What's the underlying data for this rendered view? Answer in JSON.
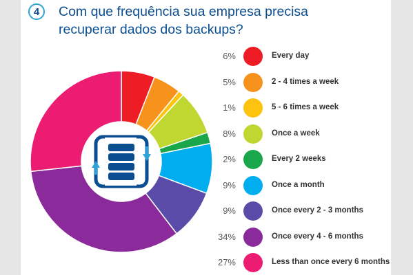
{
  "badge": "4",
  "title_lines": [
    "Com que frequência sua empresa precisa",
    "recuperar dados dos backups?"
  ],
  "chart_data": {
    "type": "pie",
    "title": "Com que frequência sua empresa precisa recuperar dados dos backups?",
    "categories": [
      "Every day",
      "2 - 4 times a week",
      "5 - 6 times a week",
      "Once a week",
      "Every 2 weeks",
      "Once a month",
      "Once every 2 - 3 months",
      "Once every 4 - 6 months",
      "Less than once every 6 months"
    ],
    "values": [
      6,
      5,
      1,
      8,
      2,
      9,
      9,
      34,
      27
    ],
    "value_labels": [
      "6%",
      "5%",
      "1%",
      "8%",
      "2%",
      "9%",
      "9%",
      "34%",
      "27%"
    ],
    "colors": [
      "#ee1c25",
      "#f7931d",
      "#fdc30f",
      "#bfd730",
      "#1aa64a",
      "#00aeef",
      "#5b4ba8",
      "#8b2a9b",
      "#ec1c72"
    ],
    "legend_position": "right"
  },
  "center_icon": "database-backup-icon"
}
